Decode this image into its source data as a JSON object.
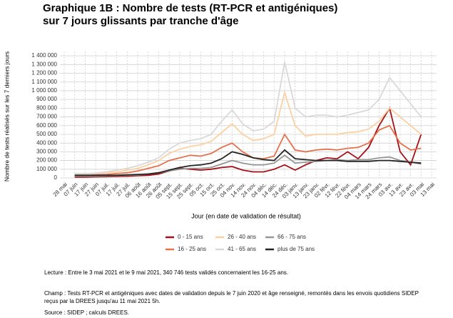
{
  "chart_data": {
    "type": "line",
    "title": "Graphique 1B : Nombre de tests (RT-PCR et antigéniques)",
    "subtitle": "sur 7 jours glissants par tranche d'âge",
    "y_label": "Nombre de tests réalisés sur les 7 derniers jours",
    "x_label": "Jour (en date de validation de résultat)",
    "categories": [
      "28 mai",
      "07 juin",
      "17 juin",
      "27 juin",
      "07 juil.",
      "17 juil.",
      "27 juil.",
      "06 août",
      "16 août",
      "26 août",
      "05 sept.",
      "15 sept.",
      "25 sept.",
      "05 oct.",
      "15 oct.",
      "25 oct.",
      "04 nov.",
      "14 nov.",
      "24 nov.",
      "04 déc.",
      "14 déc.",
      "24 déc.",
      "03 janv.",
      "13 janv.",
      "23 janv.",
      "02 févr.",
      "12 févr.",
      "22 févr.",
      "04 mars",
      "14 mars",
      "24 mars",
      "03 avr.",
      "13 avr.",
      "23 avr.",
      "03 mai",
      "13 mai"
    ],
    "ylim": [
      0,
      1450000
    ],
    "yticks": [
      0,
      {
        "value": 100000,
        "label": "100 000"
      },
      {
        "value": 200000,
        "label": "200 000"
      },
      {
        "value": 300000,
        "label": "300 000"
      },
      {
        "value": 400000,
        "label": "400 000"
      },
      {
        "value": 500000,
        "label": "500 000"
      },
      {
        "value": 600000,
        "label": "600 000"
      },
      {
        "value": 700000,
        "label": "700 000"
      },
      {
        "value": 800000,
        "label": "800 000"
      },
      {
        "value": 900000,
        "label": "900 000"
      },
      {
        "value": 1000000,
        "label": "1 000 000"
      },
      {
        "value": 1100000,
        "label": "1 100 000"
      },
      {
        "value": 1200000,
        "label": "1 200 000"
      },
      {
        "value": 1300000,
        "label": "1 300 000"
      },
      {
        "value": 1400000,
        "label": "1 400 000"
      }
    ],
    "grid": true,
    "series": [
      {
        "name": "0 - 15 ans",
        "color": "#a50f15",
        "values": [
          null,
          10000,
          10000,
          12000,
          15000,
          18000,
          20000,
          25000,
          30000,
          45000,
          80000,
          110000,
          100000,
          90000,
          100000,
          120000,
          130000,
          90000,
          70000,
          70000,
          100000,
          150000,
          90000,
          150000,
          200000,
          230000,
          220000,
          300000,
          220000,
          350000,
          600000,
          800000,
          300000,
          150000,
          500000,
          null
        ]
      },
      {
        "name": "16 - 25 ans",
        "color": "#e6714d",
        "values": [
          null,
          30000,
          30000,
          35000,
          40000,
          50000,
          60000,
          80000,
          110000,
          140000,
          200000,
          230000,
          260000,
          250000,
          280000,
          350000,
          400000,
          300000,
          230000,
          220000,
          250000,
          500000,
          320000,
          300000,
          320000,
          330000,
          320000,
          340000,
          350000,
          400000,
          550000,
          600000,
          400000,
          320000,
          340000,
          null
        ]
      },
      {
        "name": "26 - 40 ans",
        "color": "#fdd0a2",
        "values": [
          null,
          40000,
          40000,
          50000,
          60000,
          70000,
          90000,
          110000,
          150000,
          200000,
          280000,
          330000,
          360000,
          380000,
          420000,
          520000,
          620000,
          500000,
          430000,
          450000,
          500000,
          980000,
          600000,
          480000,
          500000,
          500000,
          500000,
          520000,
          530000,
          560000,
          650000,
          800000,
          700000,
          600000,
          500000,
          null
        ]
      },
      {
        "name": "41 - 65 ans",
        "color": "#d9d9d9",
        "values": [
          null,
          50000,
          50000,
          55000,
          70000,
          90000,
          110000,
          140000,
          180000,
          230000,
          330000,
          400000,
          430000,
          450000,
          500000,
          650000,
          780000,
          620000,
          540000,
          560000,
          650000,
          1330000,
          800000,
          700000,
          720000,
          720000,
          700000,
          720000,
          750000,
          780000,
          900000,
          1150000,
          1000000,
          850000,
          700000,
          null
        ]
      },
      {
        "name": "66 - 75 ans",
        "color": "#969696",
        "values": [
          null,
          20000,
          20000,
          20000,
          22000,
          25000,
          30000,
          35000,
          45000,
          60000,
          80000,
          100000,
          110000,
          110000,
          120000,
          160000,
          200000,
          170000,
          150000,
          150000,
          170000,
          260000,
          170000,
          180000,
          190000,
          200000,
          210000,
          200000,
          210000,
          210000,
          230000,
          240000,
          200000,
          180000,
          160000,
          null
        ]
      },
      {
        "name": "plus de 75 ans",
        "color": "#252525",
        "values": [
          null,
          30000,
          30000,
          30000,
          30000,
          30000,
          35000,
          40000,
          45000,
          60000,
          90000,
          120000,
          140000,
          150000,
          170000,
          220000,
          300000,
          270000,
          230000,
          210000,
          200000,
          320000,
          220000,
          210000,
          200000,
          200000,
          200000,
          190000,
          190000,
          190000,
          200000,
          200000,
          190000,
          180000,
          170000,
          null
        ]
      }
    ],
    "notes": [
      "Lecture : Entre le 3 mai 2021 et le 9 mai 2021, 340 746 tests validés concernaient les 16-25 ans.",
      "Champ : Tests RT-PCR et antigéniques avec dates de validation depuis le 7 juin 2020 et âge renseigné, remontés dans les envois quotidiens SIDEP reçus par la DREES jusqu'au 11 mai 2021 5h.",
      "Source : SIDEP ; calculs DREES."
    ]
  }
}
